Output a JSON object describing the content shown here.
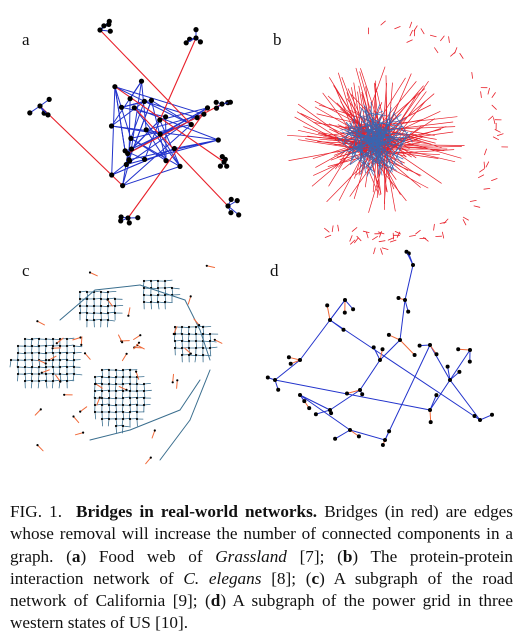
{
  "panels": [
    {
      "label": "a",
      "name": "Food web of Grassland"
    },
    {
      "label": "b",
      "name": "Protein-protein interaction network of C. elegans"
    },
    {
      "label": "c",
      "name": "Road network of California (subgraph)"
    },
    {
      "label": "d",
      "name": "Power grid in three western states of US (subgraph)"
    }
  ],
  "colors": {
    "bridge_edge": "#e8202a",
    "regular_edge": "#2233cc",
    "node": "#000000",
    "road_edge": "#3a6e8e",
    "power_bridge": "#f06a3a"
  },
  "caption": {
    "fig_number": "FIG. 1.",
    "title": "Bridges in real-world networks.",
    "t1": " Bridges (in red) are edges whose removal will increase the number of con­nected components in a graph. (",
    "a_label": "a",
    "t2": ") Food web of ",
    "grassland": "Grassland",
    "t3": " [7]; (",
    "b_label": "b",
    "t4": ") The protein-protein interaction network of ",
    "celegans": "C. elegans",
    "t5": " [8]; (",
    "c_label": "c",
    "t6": ") A subgraph of the road network of California [9]; (",
    "d_label": "d",
    "t7": ") A subgraph of the power grid in three western states of US [10]."
  }
}
